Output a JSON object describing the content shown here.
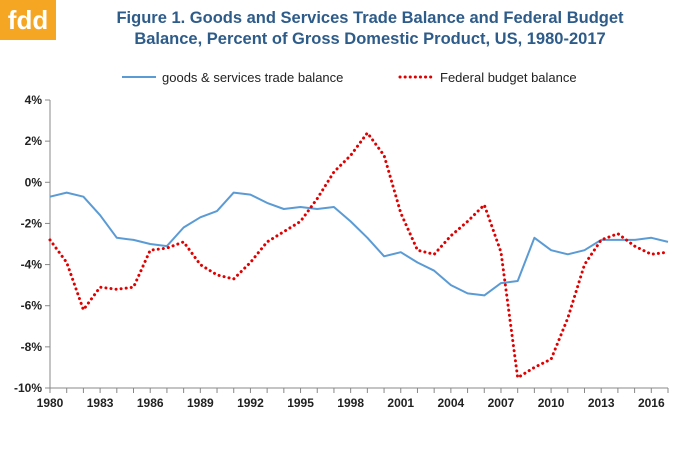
{
  "logo": {
    "text": "fdd",
    "color": "#f5a623"
  },
  "chart_data": {
    "type": "line",
    "title_line1": "Figure 1.  Goods and Services Trade Balance and Federal Budget",
    "title_line2": "Balance, Percent of Gross Domestic Product, US, 1980-2017",
    "xlabel": "",
    "ylabel": "",
    "xlim": [
      1980,
      2017
    ],
    "ylim": [
      -10,
      4
    ],
    "y_ticks": [
      4,
      2,
      0,
      -2,
      -4,
      -6,
      -8,
      -10
    ],
    "y_tick_labels": [
      "4%",
      "2%",
      "0%",
      "-2%",
      "-4%",
      "-6%",
      "-8%",
      "-10%"
    ],
    "x_tick_labels": [
      "1980",
      "1983",
      "1986",
      "1989",
      "1992",
      "1995",
      "1998",
      "2001",
      "2004",
      "2007",
      "2010",
      "2013",
      "2016"
    ],
    "grid": false,
    "legend_position": "top",
    "x": [
      1980,
      1981,
      1982,
      1983,
      1984,
      1985,
      1986,
      1987,
      1988,
      1989,
      1990,
      1991,
      1992,
      1993,
      1994,
      1995,
      1996,
      1997,
      1998,
      1999,
      2000,
      2001,
      2002,
      2003,
      2004,
      2005,
      2006,
      2007,
      2008,
      2009,
      2010,
      2011,
      2012,
      2013,
      2014,
      2015,
      2016,
      2017
    ],
    "series": [
      {
        "name": "goods & services trade balance",
        "color": "#5b9bd5",
        "style": "solid",
        "values": [
          -0.7,
          -0.5,
          -0.7,
          -1.6,
          -2.7,
          -2.8,
          -3.0,
          -3.1,
          -2.2,
          -1.7,
          -1.4,
          -0.5,
          -0.6,
          -1.0,
          -1.3,
          -1.2,
          -1.3,
          -1.2,
          -1.9,
          -2.7,
          -3.6,
          -3.4,
          -3.9,
          -4.3,
          -5.0,
          -5.4,
          -5.5,
          -4.9,
          -4.8,
          -2.7,
          -3.3,
          -3.5,
          -3.3,
          -2.8,
          -2.8,
          -2.8,
          -2.7,
          -2.9
        ]
      },
      {
        "name": "Federal budget balance",
        "color": "#e00000",
        "style": "dotted",
        "values": [
          -2.8,
          -3.9,
          -6.2,
          -5.1,
          -5.2,
          -5.1,
          -3.3,
          -3.2,
          -2.9,
          -4.0,
          -4.5,
          -4.7,
          -3.9,
          -2.9,
          -2.4,
          -1.9,
          -0.8,
          0.5,
          1.3,
          2.4,
          1.3,
          -1.5,
          -3.3,
          -3.5,
          -2.6,
          -1.9,
          -1.1,
          -3.4,
          -9.5,
          -9.0,
          -8.6,
          -6.6,
          -4.0,
          -2.8,
          -2.5,
          -3.1,
          -3.5,
          -3.4
        ]
      }
    ]
  }
}
